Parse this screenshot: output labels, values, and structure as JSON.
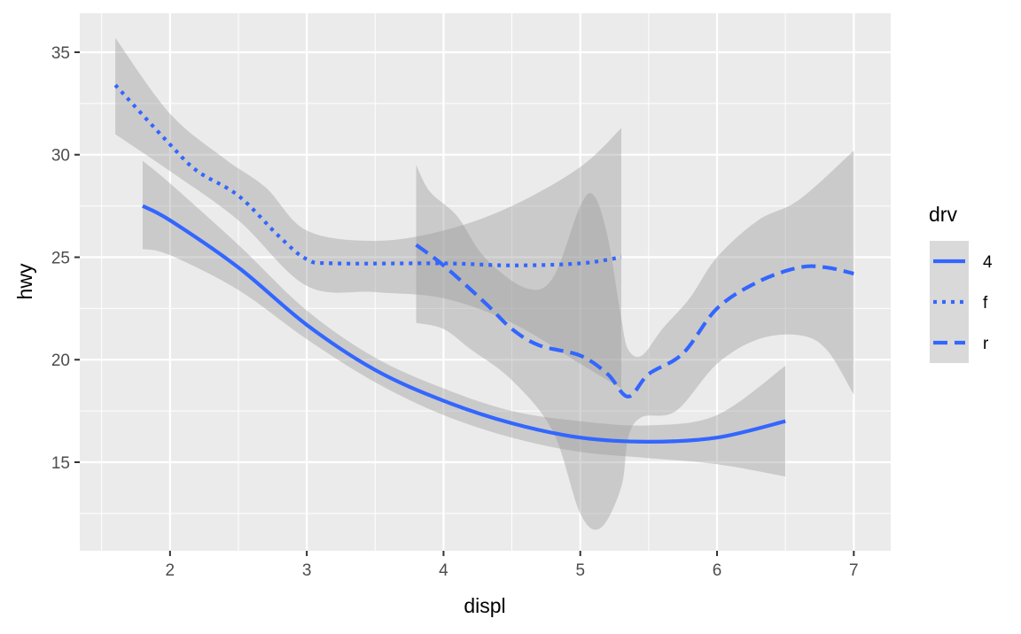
{
  "chart_data": {
    "type": "line",
    "title": "",
    "xlabel": "displ",
    "ylabel": "hwy",
    "xlim": [
      1.34,
      7.27
    ],
    "ylim": [
      10.68,
      36.9
    ],
    "x_ticks": [
      2,
      3,
      4,
      5,
      6,
      7
    ],
    "y_ticks": [
      15,
      20,
      25,
      30,
      35
    ],
    "grid": true,
    "background": "#EBEBEB",
    "line_color": "#3366FF",
    "band_color": "#999999",
    "legend": {
      "title": "drv",
      "position": "right"
    },
    "series": [
      {
        "name": "4",
        "linetype": "solid",
        "points": [
          [
            1.8,
            27.5
          ],
          [
            2,
            26.8
          ],
          [
            2.5,
            24.5
          ],
          [
            3,
            21.7
          ],
          [
            3.5,
            19.5
          ],
          [
            4,
            18
          ],
          [
            4.5,
            16.9
          ],
          [
            5,
            16.2
          ],
          [
            5.5,
            16
          ],
          [
            6,
            16.2
          ],
          [
            6.5,
            17
          ]
        ],
        "upper": [
          [
            1.8,
            29.7
          ],
          [
            2,
            28.6
          ],
          [
            2.5,
            25.6
          ],
          [
            3,
            22.4
          ],
          [
            3.5,
            20.1
          ],
          [
            4,
            18.6
          ],
          [
            4.5,
            17.5
          ],
          [
            5,
            17
          ],
          [
            5.5,
            16.8
          ],
          [
            6,
            17.3
          ],
          [
            6.5,
            19.7
          ]
        ],
        "lower": [
          [
            1.8,
            25.4
          ],
          [
            2,
            25.1
          ],
          [
            2.5,
            23.4
          ],
          [
            3,
            21
          ],
          [
            3.5,
            18.9
          ],
          [
            4,
            17.3
          ],
          [
            4.5,
            16.2
          ],
          [
            5,
            15.5
          ],
          [
            5.5,
            15.2
          ],
          [
            6,
            14.9
          ],
          [
            6.5,
            14.3
          ]
        ]
      },
      {
        "name": "f",
        "linetype": "dotted",
        "points": [
          [
            1.6,
            33.4
          ],
          [
            2,
            30.5
          ],
          [
            2.2,
            29.2
          ],
          [
            2.5,
            28
          ],
          [
            2.8,
            26
          ],
          [
            3,
            24.9
          ],
          [
            3.2,
            24.7
          ],
          [
            4,
            24.7
          ],
          [
            4.5,
            24.6
          ],
          [
            5,
            24.7
          ],
          [
            5.3,
            25
          ]
        ],
        "upper": [
          [
            1.6,
            35.7
          ],
          [
            2,
            32
          ],
          [
            2.4,
            29.8
          ],
          [
            2.7,
            28.4
          ],
          [
            3,
            26.3
          ],
          [
            3.5,
            25.8
          ],
          [
            4,
            26.3
          ],
          [
            4.5,
            27.5
          ],
          [
            5,
            29.4
          ],
          [
            5.3,
            31.3
          ]
        ],
        "lower": [
          [
            1.6,
            31
          ],
          [
            2,
            29.2
          ],
          [
            2.5,
            26.8
          ],
          [
            3,
            23.6
          ],
          [
            3.5,
            23.3
          ],
          [
            4,
            23
          ],
          [
            4.5,
            21.8
          ],
          [
            5,
            19.8
          ],
          [
            5.3,
            18.6
          ]
        ]
      },
      {
        "name": "r",
        "linetype": "dashed",
        "points": [
          [
            3.8,
            25.6
          ],
          [
            4,
            24.6
          ],
          [
            4.3,
            22.8
          ],
          [
            4.5,
            21.5
          ],
          [
            4.7,
            20.7
          ],
          [
            5,
            20.2
          ],
          [
            5.2,
            19.3
          ],
          [
            5.35,
            18.2
          ],
          [
            5.5,
            19.3
          ],
          [
            5.75,
            20.3
          ],
          [
            6,
            22.5
          ],
          [
            6.3,
            23.8
          ],
          [
            6.6,
            24.5
          ],
          [
            6.8,
            24.5
          ],
          [
            7,
            24.2
          ]
        ],
        "upper": [
          [
            3.8,
            29.5
          ],
          [
            3.9,
            28.2
          ],
          [
            4.1,
            27
          ],
          [
            4.3,
            25
          ],
          [
            4.6,
            23.5
          ],
          [
            4.8,
            24
          ],
          [
            5,
            27.5
          ],
          [
            5.1,
            28
          ],
          [
            5.2,
            26
          ],
          [
            5.3,
            22
          ],
          [
            5.35,
            20.5
          ],
          [
            5.45,
            20.2
          ],
          [
            5.6,
            21.5
          ],
          [
            5.8,
            23
          ],
          [
            6,
            25
          ],
          [
            6.3,
            26.8
          ],
          [
            6.6,
            27.8
          ],
          [
            7,
            30.2
          ]
        ],
        "lower": [
          [
            3.8,
            21.8
          ],
          [
            4,
            21.5
          ],
          [
            4.2,
            20.5
          ],
          [
            4.5,
            19
          ],
          [
            4.8,
            16.5
          ],
          [
            5,
            12.5
          ],
          [
            5.15,
            11.8
          ],
          [
            5.3,
            13.8
          ],
          [
            5.35,
            16.2
          ],
          [
            5.45,
            17.2
          ],
          [
            5.7,
            17.5
          ],
          [
            6,
            19.8
          ],
          [
            6.3,
            21
          ],
          [
            6.6,
            21.2
          ],
          [
            6.8,
            20.5
          ],
          [
            7,
            18.3
          ]
        ]
      }
    ]
  }
}
